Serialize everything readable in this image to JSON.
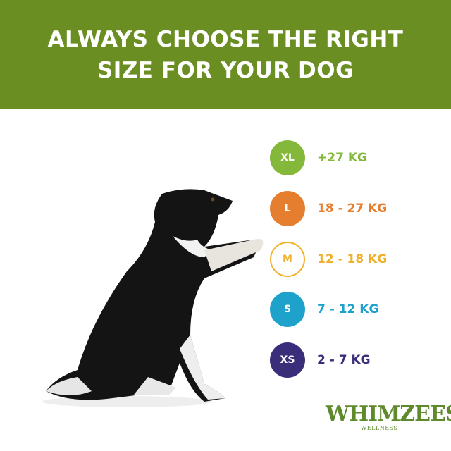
{
  "header": {
    "line1": "ALWAYS CHOOSE THE RIGHT",
    "line2": "SIZE FOR YOUR DOG",
    "background": "#6b8e23"
  },
  "sizes": [
    {
      "size": "XL",
      "weight": "+27 KG",
      "color": "#84b83a",
      "style": "filled"
    },
    {
      "size": "L",
      "weight": "18 - 27 KG",
      "color": "#e67e30",
      "style": "filled"
    },
    {
      "size": "M",
      "weight": "12 - 18 KG",
      "color": "#f0b02c",
      "style": "outline"
    },
    {
      "size": "S",
      "weight": "7 - 12 KG",
      "color": "#1ea2cc",
      "style": "filled"
    },
    {
      "size": "XS",
      "weight": "2 - 7 KG",
      "color": "#3a2d7a",
      "style": "filled"
    }
  ],
  "logo": {
    "brand": "WHIMZEES",
    "sub": "WELLNESS"
  }
}
